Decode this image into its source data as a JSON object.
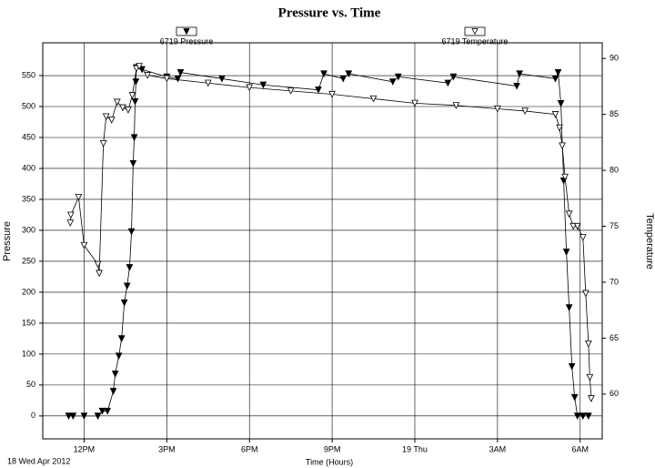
{
  "chart_data": {
    "type": "line",
    "title": "Pressure vs. Time",
    "x_label": "Time (Hours)",
    "y_label": "Pressure",
    "y2_label": "Temperature",
    "date_label": "18 Wed Apr 2012",
    "xlim": [
      10.5,
      30.8
    ],
    "xticks": [
      {
        "value": 12,
        "label": "12PM"
      },
      {
        "value": 15,
        "label": "3PM"
      },
      {
        "value": 18,
        "label": "6PM"
      },
      {
        "value": 21,
        "label": "9PM"
      },
      {
        "value": 24,
        "label": "19 Thu"
      },
      {
        "value": 27,
        "label": "3AM"
      },
      {
        "value": 30,
        "label": "6AM"
      }
    ],
    "ylim": [
      -37,
      603
    ],
    "yticks": [
      0,
      50,
      100,
      150,
      200,
      250,
      300,
      350,
      400,
      450,
      500,
      550
    ],
    "y2lim": [
      56,
      91.4
    ],
    "y2ticks": [
      60,
      65,
      70,
      75,
      80,
      85,
      90
    ],
    "grid": true,
    "series": [
      {
        "name": "6719 Pressure",
        "color": "#000000",
        "filled": true,
        "axis": "y",
        "x": [
          11.44,
          11.6,
          12.0,
          12.5,
          12.66,
          12.85,
          13.06,
          13.13,
          13.26,
          13.36,
          13.46,
          13.56,
          13.65,
          13.72,
          13.78,
          13.82,
          13.85,
          13.88,
          13.9,
          14.1,
          15.0,
          15.4,
          15.5,
          17.0,
          18.5,
          20.5,
          20.7,
          21.4,
          21.6,
          23.2,
          23.4,
          25.2,
          25.4,
          27.7,
          27.8,
          29.1,
          29.2,
          29.3,
          29.4,
          29.5,
          29.6,
          29.7,
          29.8,
          29.9,
          30.1,
          30.3
        ],
        "values": [
          0,
          0,
          0,
          0,
          8,
          8,
          40,
          68,
          97,
          125,
          183,
          210,
          240,
          298,
          408,
          450,
          508,
          540,
          563,
          560,
          548,
          545,
          555,
          545,
          535,
          527,
          553,
          545,
          553,
          540,
          548,
          538,
          548,
          533,
          553,
          545,
          555,
          505,
          380,
          265,
          175,
          80,
          30,
          0,
          0,
          0
        ]
      },
      {
        "name": "6719 Temperature",
        "color": "#000000",
        "filled": false,
        "axis": "y2",
        "x": [
          11.5,
          11.52,
          11.8,
          12.0,
          12.5,
          12.55,
          12.7,
          12.8,
          13.0,
          13.2,
          13.4,
          13.6,
          13.75,
          13.9,
          14.0,
          14.3,
          15.0,
          16.5,
          18.0,
          19.5,
          21.0,
          22.5,
          24.0,
          25.5,
          27.0,
          28.0,
          29.1,
          29.25,
          29.35,
          29.45,
          29.6,
          29.75,
          29.9,
          30.1,
          30.2,
          30.3,
          30.35,
          30.4
        ],
        "values": [
          75.3,
          76.0,
          77.6,
          73.3,
          71.6,
          70.8,
          82.4,
          84.8,
          84.5,
          86.1,
          85.6,
          85.4,
          86.7,
          89.1,
          89.3,
          88.5,
          88.2,
          87.8,
          87.4,
          87.1,
          86.8,
          86.4,
          86.0,
          85.8,
          85.5,
          85.3,
          85.0,
          83.8,
          82.2,
          79.4,
          76.1,
          75.0,
          75.0,
          74.0,
          69.0,
          64.5,
          61.5,
          59.6
        ]
      }
    ]
  }
}
